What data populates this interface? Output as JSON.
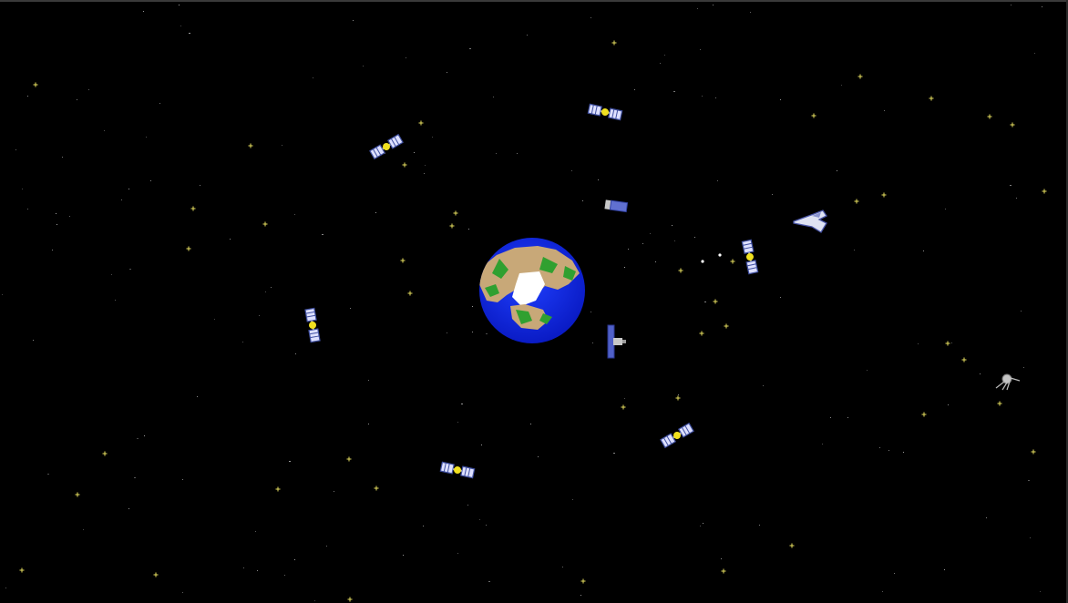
{
  "scene": {
    "background": "#000000",
    "star_color": "#e8e060",
    "dot_star_color": "#bdbdbd",
    "earth": {
      "ocean": "#1030e0",
      "land": "#c8a878",
      "vegetation": "#30a030",
      "ice": "#ffffff"
    },
    "objects": [
      {
        "kind": "satellite",
        "icon": "satellite-icon"
      },
      {
        "kind": "satellite",
        "icon": "satellite-icon"
      },
      {
        "kind": "satellite",
        "icon": "satellite-icon"
      },
      {
        "kind": "satellite",
        "icon": "satellite-icon"
      },
      {
        "kind": "satellite",
        "icon": "satellite-icon"
      },
      {
        "kind": "satellite",
        "icon": "satellite-icon"
      },
      {
        "kind": "space-telescope",
        "icon": "telescope-icon"
      },
      {
        "kind": "space-station",
        "icon": "station-module-icon"
      },
      {
        "kind": "space-shuttle",
        "icon": "shuttle-icon"
      },
      {
        "kind": "sputnik-probe",
        "icon": "sputnik-icon"
      }
    ]
  }
}
